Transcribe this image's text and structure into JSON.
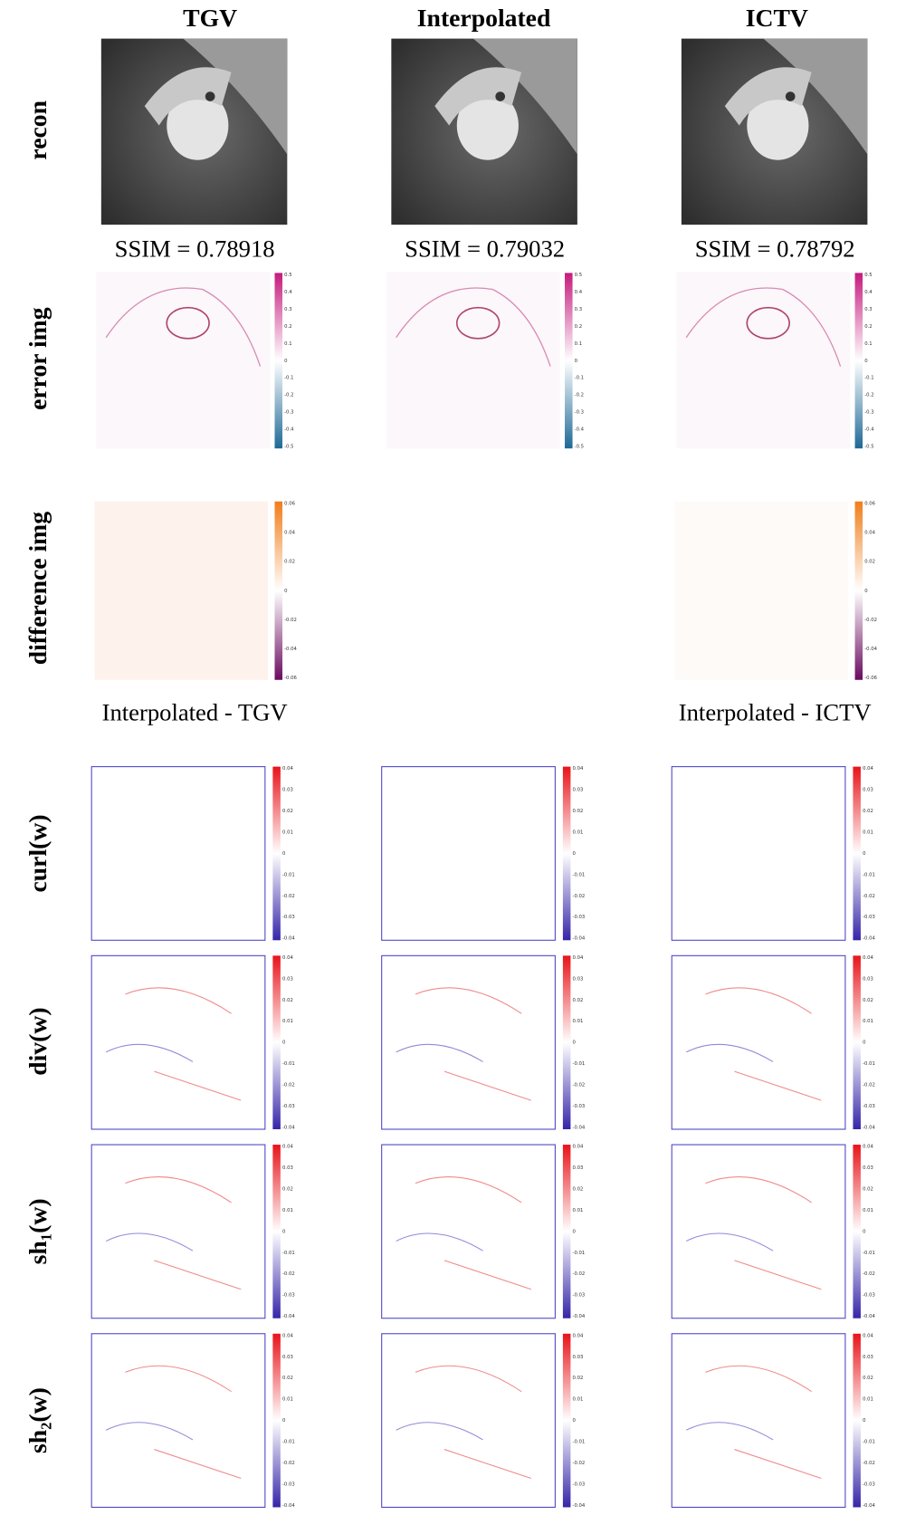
{
  "columns": [
    "TGV",
    "Interpolated",
    "ICTV"
  ],
  "rows": {
    "recon": "recon",
    "error": "error img",
    "difference": "difference img",
    "curl": "curl(w)",
    "div": "div(w)",
    "sh1": "sh₁(w)",
    "sh2": "sh₂(w)"
  },
  "ssim": [
    "SSIM = 0.78918",
    "SSIM = 0.79032",
    "SSIM = 0.78792"
  ],
  "difference_captions": [
    "Interpolated - TGV",
    "Interpolated - ICTV"
  ],
  "colorbars": {
    "error": [
      "0.5",
      "0.4",
      "0.3",
      "0.2",
      "0.1",
      "0",
      "-0.1",
      "-0.2",
      "-0.3",
      "-0.4",
      "-0.5"
    ],
    "difference": [
      "0.06",
      "0.04",
      "0.02",
      "0",
      "-0.02",
      "-0.04",
      "-0.06"
    ],
    "vector": [
      "0.04",
      "0.03",
      "0.02",
      "0.01",
      "0",
      "-0.01",
      "-0.02",
      "-0.03",
      "-0.04"
    ]
  }
}
